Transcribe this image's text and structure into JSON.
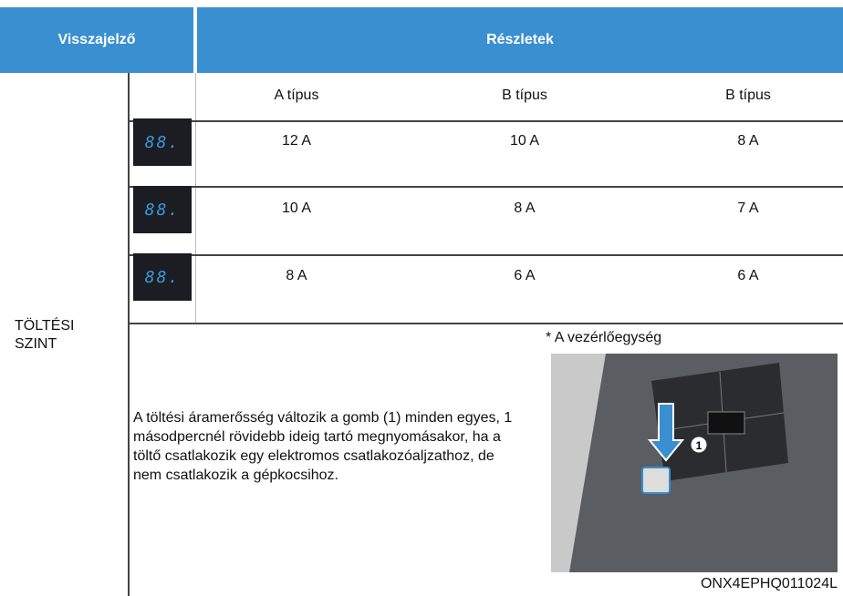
{
  "header": {
    "indicator": "Visszajelző",
    "details": "Részletek"
  },
  "table": {
    "side_label": "TÖLTÉSI SZINT",
    "column_headers": [
      "A típus",
      "B típus",
      "B típus"
    ],
    "rows": [
      {
        "display": "88.",
        "cells": [
          "12 A",
          "10 A",
          "8 A"
        ]
      },
      {
        "display": "88.",
        "cells": [
          "10 A",
          "8 A",
          "7 A"
        ]
      },
      {
        "display": "88.",
        "cells": [
          "8 A",
          "6 A",
          "6 A"
        ]
      }
    ]
  },
  "description": "A töltési áramerősség változik a gomb (1) minden egyes, 1 másodpercnél rövidebb ideig tartó megnyomásakor, ha a töltő csatlakozik egy elektromos csatlakozóaljzathoz, de nem csatlakozik a gépkocsihoz.",
  "image": {
    "caption": "* A vezérlőegység",
    "callout": "1",
    "code": "ONX4EPHQ011024L"
  }
}
